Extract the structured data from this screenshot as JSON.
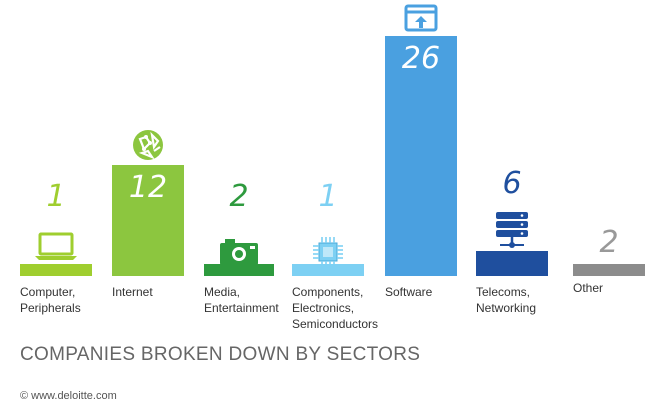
{
  "chart_data": {
    "type": "bar",
    "title": "COMPANIES BROKEN DOWN BY SECTORS",
    "categories": [
      "Computer,\nPeripherals",
      "Internet",
      "Media,\nEntertainment",
      "Components,\nElectronics,\nSemiconductors",
      "Software",
      "Telecoms,\nNetworking",
      "Other"
    ],
    "values": [
      1,
      12,
      2,
      1,
      26,
      6,
      2
    ],
    "value_labels": [
      "1",
      "12",
      "2",
      "1",
      "26",
      "6",
      "2"
    ],
    "colors": [
      "#9fce2f",
      "#8cc63f",
      "#2e9a3e",
      "#7dd0f3",
      "#4aa0e0",
      "#1f4f9e",
      "#8c8c8c"
    ],
    "icons": [
      "laptop-icon",
      "globe-icon",
      "camera-icon",
      "chip-icon",
      "app-upload-icon",
      "server-icon",
      ""
    ],
    "xlabel": "",
    "ylabel": "",
    "ylim": [
      0,
      26
    ],
    "grid": false,
    "legend": "none"
  },
  "footer": {
    "credit": "© www.deloitte.com"
  }
}
